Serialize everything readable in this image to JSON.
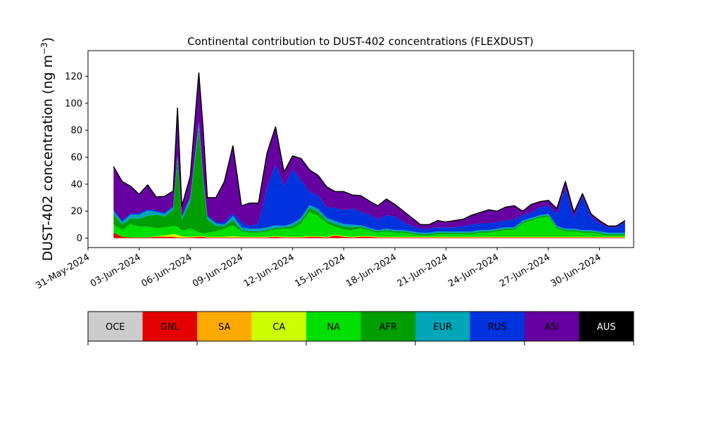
{
  "chart_data": {
    "type": "area",
    "title": "Continental contribution to DUST-402 concentrations (FLEXDUST)",
    "ylabel": "DUST-402 concentration (ng m",
    "ylabel_sup": "−3",
    "ylabel_close": ")",
    "ylim": [
      -7,
      139
    ],
    "xlim": [
      "2024-05-31",
      "2024-07-02"
    ],
    "yticks": [
      0,
      20,
      40,
      60,
      80,
      100,
      120
    ],
    "xticks": [
      "31-May-2024",
      "03-Jun-2024",
      "06-Jun-2024",
      "09-Jun-2024",
      "12-Jun-2024",
      "15-Jun-2024",
      "18-Jun-2024",
      "21-Jun-2024",
      "24-Jun-2024",
      "27-Jun-2024",
      "30-Jun-2024"
    ],
    "stack_order": [
      "GNL",
      "SA",
      "CA",
      "NA",
      "AFR",
      "EUR",
      "RUS",
      "ASI"
    ],
    "legend": [
      {
        "label": "OCE",
        "color": "#cccccc"
      },
      {
        "label": "GNL",
        "color": "#e50000"
      },
      {
        "label": "SA",
        "color": "#ffaa00"
      },
      {
        "label": "CA",
        "color": "#ccff00"
      },
      {
        "label": "NA",
        "color": "#00e000"
      },
      {
        "label": "AFR",
        "color": "#009e00"
      },
      {
        "label": "EUR",
        "color": "#00a5b8"
      },
      {
        "label": "RUS",
        "color": "#0033dd"
      },
      {
        "label": "ASI",
        "color": "#6600a0"
      },
      {
        "label": "AUS",
        "color": "#000000"
      }
    ],
    "x": [
      "2024-06-01 12:00",
      "2024-06-02 00:00",
      "2024-06-02 12:00",
      "2024-06-03 00:00",
      "2024-06-03 12:00",
      "2024-06-04 00:00",
      "2024-06-04 12:00",
      "2024-06-05 00:00",
      "2024-06-05 06:00",
      "2024-06-05 12:00",
      "2024-06-06 00:00",
      "2024-06-06 12:00",
      "2024-06-06 18:00",
      "2024-06-07 00:00",
      "2024-06-07 12:00",
      "2024-06-08 00:00",
      "2024-06-08 12:00",
      "2024-06-09 00:00",
      "2024-06-09 12:00",
      "2024-06-10 00:00",
      "2024-06-10 12:00",
      "2024-06-11 00:00",
      "2024-06-11 12:00",
      "2024-06-12 00:00",
      "2024-06-12 12:00",
      "2024-06-13 00:00",
      "2024-06-13 12:00",
      "2024-06-14 00:00",
      "2024-06-14 12:00",
      "2024-06-15 00:00",
      "2024-06-15 12:00",
      "2024-06-16 00:00",
      "2024-06-16 12:00",
      "2024-06-17 00:00",
      "2024-06-17 12:00",
      "2024-06-18 00:00",
      "2024-06-18 12:00",
      "2024-06-19 00:00",
      "2024-06-19 12:00",
      "2024-06-20 00:00",
      "2024-06-20 12:00",
      "2024-06-21 00:00",
      "2024-06-21 12:00",
      "2024-06-22 00:00",
      "2024-06-22 12:00",
      "2024-06-23 00:00",
      "2024-06-23 12:00",
      "2024-06-24 00:00",
      "2024-06-24 12:00",
      "2024-06-25 00:00",
      "2024-06-25 12:00",
      "2024-06-26 00:00",
      "2024-06-26 12:00",
      "2024-06-27 00:00",
      "2024-06-27 12:00",
      "2024-06-28 00:00",
      "2024-06-28 12:00",
      "2024-06-29 00:00",
      "2024-06-29 12:00",
      "2024-06-30 00:00",
      "2024-06-30 12:00",
      "2024-07-01 00:00",
      "2024-07-01 12:00"
    ],
    "series": [
      {
        "name": "GNL",
        "values": [
          4,
          1,
          0.5,
          0.5,
          0.5,
          1,
          1,
          1,
          0.5,
          0.5,
          0.5,
          1,
          1,
          0.5,
          0.5,
          0.5,
          0.5,
          0.5,
          0.5,
          0.5,
          0.5,
          1,
          0.5,
          0.5,
          0.5,
          1,
          1,
          0.5,
          2,
          1,
          0.5,
          1,
          1,
          0.5,
          0.5,
          0.5,
          0.5,
          0.5,
          0.5,
          0.5,
          0.5,
          0.5,
          0.5,
          0.5,
          0.5,
          0.5,
          0.5,
          0.5,
          0.5,
          0.5,
          0.5,
          0.5,
          0.5,
          0.5,
          0.5,
          0.5,
          0.5,
          0.5,
          0.5,
          0.5,
          0.5,
          0.5,
          0.5
        ]
      },
      {
        "name": "SA",
        "values": [
          0,
          0,
          0,
          0,
          0,
          0,
          0,
          0,
          0,
          0,
          0,
          0,
          0,
          0,
          0,
          0,
          0,
          0,
          0,
          0,
          0,
          0,
          0,
          0,
          0,
          0,
          0,
          0,
          0,
          0,
          0,
          0,
          0,
          0,
          0,
          0,
          0,
          0,
          0,
          0,
          0,
          0,
          0,
          0,
          0,
          0,
          0,
          0,
          0,
          0,
          0,
          0,
          0,
          0,
          0,
          0,
          0,
          0,
          0,
          0,
          0,
          0,
          0
        ]
      },
      {
        "name": "CA",
        "values": [
          0,
          0,
          0,
          0,
          0,
          0.5,
          1,
          2,
          2,
          1,
          0.5,
          0.5,
          0.5,
          0.5,
          0.5,
          0.5,
          1,
          0.5,
          0.5,
          0.5,
          0.5,
          0.5,
          0.5,
          0.5,
          0.5,
          0.5,
          0.5,
          0.5,
          0.5,
          0.5,
          0.5,
          0.5,
          0.5,
          0.5,
          0.5,
          0.5,
          0.5,
          0.5,
          0.5,
          0.5,
          0.5,
          0.5,
          0.5,
          0.5,
          0.5,
          0.5,
          0.5,
          0.5,
          0.5,
          0.5,
          0.5,
          0.5,
          0.5,
          0.5,
          0.5,
          0.5,
          0.5,
          0.5,
          0.5,
          0.5,
          0.5,
          0.5,
          0.5
        ]
      },
      {
        "name": "NA",
        "values": [
          6,
          5,
          10,
          8,
          8,
          6,
          6,
          6,
          6,
          4,
          6,
          3,
          2,
          3,
          4,
          6,
          8,
          4,
          3,
          3,
          4,
          5,
          6,
          6,
          10,
          18,
          15,
          10,
          6,
          5,
          5,
          6,
          4,
          3,
          4,
          3,
          3,
          2,
          1,
          1,
          2,
          2,
          2,
          2,
          2,
          3,
          3,
          4,
          5,
          5,
          10,
          12,
          14,
          15,
          6,
          4,
          4,
          3,
          3,
          2,
          1,
          1,
          1
        ]
      },
      {
        "name": "AFR",
        "values": [
          8,
          4,
          4,
          6,
          8,
          10,
          8,
          12,
          50,
          8,
          20,
          78,
          40,
          10,
          4,
          2,
          4,
          1,
          1,
          1,
          1,
          1,
          1,
          2,
          2,
          3,
          3,
          2,
          2,
          2,
          2,
          1,
          1,
          1,
          1,
          1,
          1,
          1,
          1,
          1,
          1,
          1,
          1,
          1,
          1,
          1,
          1,
          1,
          1,
          1,
          1,
          1,
          1,
          1,
          1,
          1,
          1,
          1,
          1,
          1,
          1,
          1,
          1
        ]
      },
      {
        "name": "EUR",
        "values": [
          2,
          2,
          3,
          3,
          4,
          2,
          2,
          2,
          2,
          2,
          3,
          3,
          2,
          2,
          2,
          1,
          3,
          2,
          2,
          2,
          2,
          2,
          1,
          2,
          2,
          2,
          2,
          2,
          2,
          2,
          2,
          1,
          1,
          1,
          1,
          1,
          1,
          1,
          1,
          1,
          1,
          1,
          1,
          1,
          1,
          1,
          1,
          1,
          1,
          1,
          1,
          1,
          1,
          1,
          1,
          1,
          1,
          1,
          1,
          1,
          1,
          1,
          1
        ]
      },
      {
        "name": "RUS",
        "values": [
          1,
          1,
          1,
          1,
          1,
          1,
          1,
          1,
          1,
          1,
          1,
          1,
          1,
          1,
          1,
          2,
          2,
          4,
          2,
          4,
          30,
          45,
          30,
          40,
          28,
          10,
          10,
          8,
          10,
          10,
          12,
          10,
          10,
          8,
          10,
          10,
          6,
          4,
          3,
          3,
          3,
          3,
          3,
          4,
          5,
          5,
          5,
          5,
          5,
          6,
          4,
          4,
          6,
          6,
          9,
          30,
          8,
          25,
          10,
          6,
          4,
          4,
          8
        ]
      },
      {
        "name": "ASI",
        "values": [
          32,
          29,
          20,
          14,
          18,
          10,
          12,
          11,
          35,
          7,
          15,
          36,
          35,
          13,
          18,
          30,
          50,
          12,
          17,
          15,
          25,
          28,
          10,
          10,
          16,
          16,
          15,
          15,
          12,
          14,
          10,
          12,
          10,
          10,
          12,
          9,
          8,
          6,
          3,
          3,
          5,
          4,
          5,
          5,
          7,
          8,
          10,
          8,
          10,
          10,
          3,
          6,
          4,
          4,
          4,
          5,
          4,
          2,
          2,
          2,
          1,
          1,
          1
        ]
      }
    ]
  }
}
